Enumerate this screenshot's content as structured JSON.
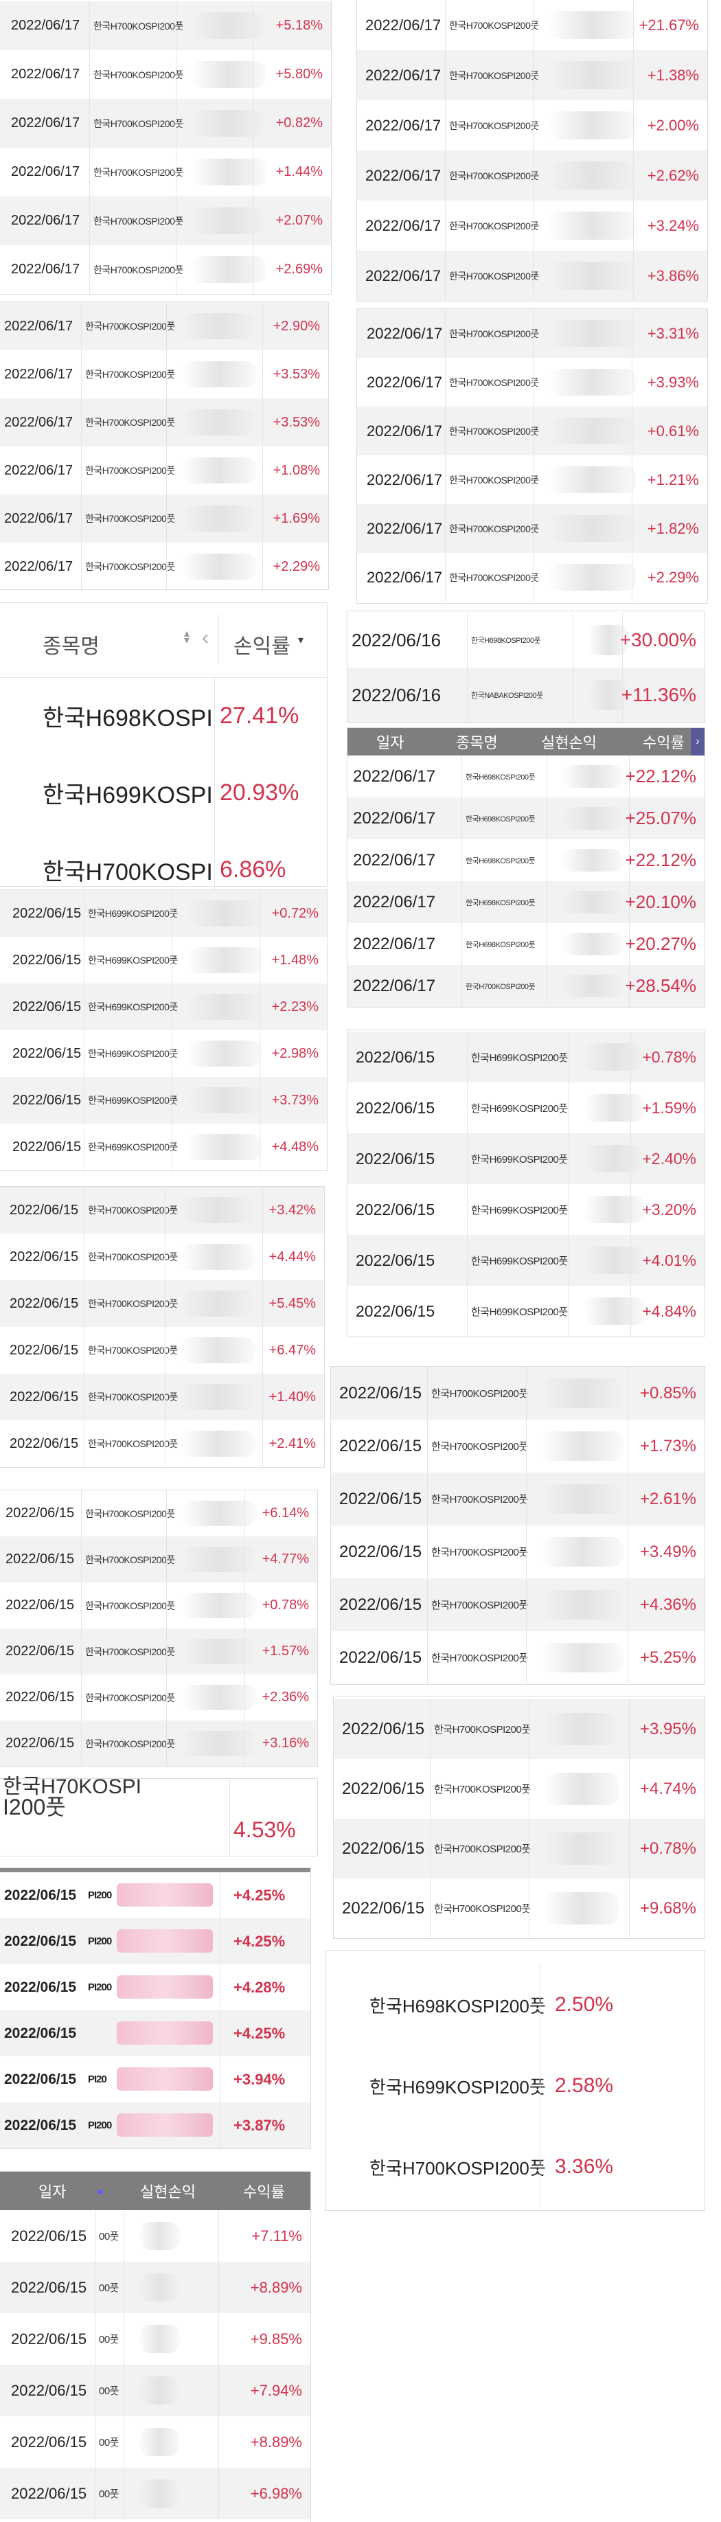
{
  "colors": {
    "positive": "#d2334c",
    "header_bg": "#7e7e7e",
    "row_alt": "#f2f2f2"
  },
  "panelA": {
    "rows": [
      {
        "date": "2022/06/17",
        "name": "한국H700KOSPI200풋",
        "value": "+5.18%"
      },
      {
        "date": "2022/06/17",
        "name": "한국H700KOSPI200풋",
        "value": "+5.80%"
      },
      {
        "date": "2022/06/17",
        "name": "한국H700KOSPI200풋",
        "value": "+0.82%"
      },
      {
        "date": "2022/06/17",
        "name": "한국H700KOSPI200풋",
        "value": "+1.44%"
      },
      {
        "date": "2022/06/17",
        "name": "한국H700KOSPI200풋",
        "value": "+2.07%"
      },
      {
        "date": "2022/06/17",
        "name": "한국H700KOSPI200풋",
        "value": "+2.69%"
      }
    ]
  },
  "panelB": {
    "rows": [
      {
        "date": "2022/06/17",
        "name": "한국H700KOSPI200풋",
        "value": "+21.67%"
      },
      {
        "date": "2022/06/17",
        "name": "한국H700KOSPI200풋",
        "value": "+1.38%"
      },
      {
        "date": "2022/06/17",
        "name": "한국H700KOSPI200풋",
        "value": "+2.00%"
      },
      {
        "date": "2022/06/17",
        "name": "한국H700KOSPI200풋",
        "value": "+2.62%"
      },
      {
        "date": "2022/06/17",
        "name": "한국H700KOSPI200풋",
        "value": "+3.24%"
      },
      {
        "date": "2022/06/17",
        "name": "한국H700KOSPI200풋",
        "value": "+3.86%"
      }
    ]
  },
  "panelC": {
    "rows": [
      {
        "date": "2022/06/17",
        "name": "한국H700KOSPI200풋",
        "value": "+2.90%"
      },
      {
        "date": "2022/06/17",
        "name": "한국H700KOSPI200풋",
        "value": "+3.53%"
      },
      {
        "date": "2022/06/17",
        "name": "한국H700KOSPI200풋",
        "value": "+3.53%"
      },
      {
        "date": "2022/06/17",
        "name": "한국H700KOSPI200풋",
        "value": "+1.08%"
      },
      {
        "date": "2022/06/17",
        "name": "한국H700KOSPI200풋",
        "value": "+1.69%"
      },
      {
        "date": "2022/06/17",
        "name": "한국H700KOSPI200풋",
        "value": "+2.29%"
      }
    ]
  },
  "panelD": {
    "rows": [
      {
        "date": "2022/06/17",
        "name": "한국H700KOSPI200풋",
        "value": "+3.31%"
      },
      {
        "date": "2022/06/17",
        "name": "한국H700KOSPI200풋",
        "value": "+3.93%"
      },
      {
        "date": "2022/06/17",
        "name": "한국H700KOSPI200풋",
        "value": "+0.61%"
      },
      {
        "date": "2022/06/17",
        "name": "한국H700KOSPI200풋",
        "value": "+1.21%"
      },
      {
        "date": "2022/06/17",
        "name": "한국H700KOSPI200풋",
        "value": "+1.82%"
      },
      {
        "date": "2022/06/17",
        "name": "한국H700KOSPI200풋",
        "value": "+2.29%"
      }
    ]
  },
  "panelE": {
    "header": {
      "name": "종목명",
      "sort_icon": "sort-arrows-icon",
      "back_icon": "chevron-left-icon",
      "return": "손익률",
      "dropdown_icon": "caret-down-icon"
    },
    "rows": [
      {
        "name": "한국H698KOSPI",
        "value": "27.41%"
      },
      {
        "name": "한국H699KOSPI",
        "value": "20.93%"
      },
      {
        "name": "한국H700KOSPI",
        "value": "6.86%"
      }
    ]
  },
  "panelF": {
    "rows": [
      {
        "date": "2022/06/16",
        "name": "한국H698KOSPI200풋",
        "value": "+30.00%"
      },
      {
        "date": "2022/06/16",
        "name": "한국NABAKOSPI200풋",
        "value": "+11.36%"
      }
    ]
  },
  "panelG": {
    "header": {
      "date": "일자",
      "name": "종목명",
      "realized": "실현손익",
      "return": "수익률",
      "next_icon": "chevron-right-icon"
    },
    "rows": [
      {
        "date": "2022/06/17",
        "name": "한국H698KOSPI200풋",
        "value": "+22.12%"
      },
      {
        "date": "2022/06/17",
        "name": "한국H698KOSPI200풋",
        "value": "+25.07%"
      },
      {
        "date": "2022/06/17",
        "name": "한국H698KOSPI200풋",
        "value": "+22.12%"
      },
      {
        "date": "2022/06/17",
        "name": "한국H698KOSPI200풋",
        "value": "+20.10%"
      },
      {
        "date": "2022/06/17",
        "name": "한국H698KOSPI200풋",
        "value": "+20.27%"
      },
      {
        "date": "2022/06/17",
        "name": "한국H700KOSPI200풋",
        "value": "+28.54%"
      }
    ]
  },
  "panelH": {
    "rows": [
      {
        "date": "2022/06/15",
        "name": "한국H699KOSPI200풋",
        "value": "+0.72%"
      },
      {
        "date": "2022/06/15",
        "name": "한국H699KOSPI200풋",
        "value": "+1.48%"
      },
      {
        "date": "2022/06/15",
        "name": "한국H699KOSPI200풋",
        "value": "+2.23%"
      },
      {
        "date": "2022/06/15",
        "name": "한국H699KOSPI200풋",
        "value": "+2.98%"
      },
      {
        "date": "2022/06/15",
        "name": "한국H699KOSPI200풋",
        "value": "+3.73%"
      },
      {
        "date": "2022/06/15",
        "name": "한국H699KOSPI200풋",
        "value": "+4.48%"
      }
    ]
  },
  "panelI": {
    "rows": [
      {
        "date": "2022/06/15",
        "name": "한국H699KOSPI200풋",
        "value": "+0.78%"
      },
      {
        "date": "2022/06/15",
        "name": "한국H699KOSPI200풋",
        "value": "+1.59%"
      },
      {
        "date": "2022/06/15",
        "name": "한국H699KOSPI200풋",
        "value": "+2.40%"
      },
      {
        "date": "2022/06/15",
        "name": "한국H699KOSPI200풋",
        "value": "+3.20%"
      },
      {
        "date": "2022/06/15",
        "name": "한국H699KOSPI200풋",
        "value": "+4.01%"
      },
      {
        "date": "2022/06/15",
        "name": "한국H699KOSPI200풋",
        "value": "+4.84%"
      }
    ]
  },
  "panelJ": {
    "rows": [
      {
        "date": "2022/06/15",
        "name": "한국H700KOSPI200풋",
        "value": "+3.42%"
      },
      {
        "date": "2022/06/15",
        "name": "한국H700KOSPI200풋",
        "value": "+4.44%"
      },
      {
        "date": "2022/06/15",
        "name": "한국H700KOSPI200풋",
        "value": "+5.45%"
      },
      {
        "date": "2022/06/15",
        "name": "한국H700KOSPI200풋",
        "value": "+6.47%"
      },
      {
        "date": "2022/06/15",
        "name": "한국H700KOSPI200풋",
        "value": "+1.40%"
      },
      {
        "date": "2022/06/15",
        "name": "한국H700KOSPI200풋",
        "value": "+2.41%"
      }
    ]
  },
  "panelK": {
    "rows": [
      {
        "date": "2022/06/15",
        "name": "한국H700KOSPI200풋",
        "value": "+0.85%"
      },
      {
        "date": "2022/06/15",
        "name": "한국H700KOSPI200풋",
        "value": "+1.73%"
      },
      {
        "date": "2022/06/15",
        "name": "한국H700KOSPI200풋",
        "value": "+2.61%"
      },
      {
        "date": "2022/06/15",
        "name": "한국H700KOSPI200풋",
        "value": "+3.49%"
      },
      {
        "date": "2022/06/15",
        "name": "한국H700KOSPI200풋",
        "value": "+4.36%"
      },
      {
        "date": "2022/06/15",
        "name": "한국H700KOSPI200풋",
        "value": "+5.25%"
      }
    ]
  },
  "panelL": {
    "rows": [
      {
        "date": "2022/06/15",
        "name": "한국H700KOSPI200풋",
        "value": "+6.14%"
      },
      {
        "date": "2022/06/15",
        "name": "한국H700KOSPI200풋",
        "value": "+4.77%"
      },
      {
        "date": "2022/06/15",
        "name": "한국H700KOSPI200풋",
        "value": "+0.78%"
      },
      {
        "date": "2022/06/15",
        "name": "한국H700KOSPI200풋",
        "value": "+1.57%"
      },
      {
        "date": "2022/06/15",
        "name": "한국H700KOSPI200풋",
        "value": "+2.36%"
      },
      {
        "date": "2022/06/15",
        "name": "한국H700KOSPI200풋",
        "value": "+3.16%"
      }
    ]
  },
  "panelM": {
    "rows": [
      {
        "date": "2022/06/15",
        "name": "한국H700KOSPI200풋",
        "value": "+3.95%"
      },
      {
        "date": "2022/06/15",
        "name": "한국H700KOSPI200풋",
        "value": "+4.74%"
      },
      {
        "date": "2022/06/15",
        "name": "한국H700KOSPI200풋",
        "value": "+0.78%"
      },
      {
        "date": "2022/06/15",
        "name": "한국H700KOSPI200풋",
        "value": "+9.68%"
      }
    ]
  },
  "panelN": {
    "top_fragment": "한국H70KOSPI",
    "name": "I200풋",
    "value": "4.53%"
  },
  "panelO": {
    "rows": [
      {
        "date": "2022/06/15",
        "name": "PI200",
        "value": "+4.25%"
      },
      {
        "date": "2022/06/15",
        "name": "PI200",
        "value": "+4.25%"
      },
      {
        "date": "2022/06/15",
        "name": "PI200",
        "value": "+4.28%"
      },
      {
        "date": "2022/06/15",
        "name": "",
        "value": "+4.25%"
      },
      {
        "date": "2022/06/15",
        "name": "PI20",
        "value": "+3.94%"
      },
      {
        "date": "2022/06/15",
        "name": "PI200",
        "value": "+3.87%"
      }
    ]
  },
  "panelP": {
    "rows": [
      {
        "name": "한국H698KOSPI200풋",
        "value": "2.50%"
      },
      {
        "name": "한국H699KOSPI200풋",
        "value": "2.58%"
      },
      {
        "name": "한국H700KOSPI200풋",
        "value": "3.36%"
      }
    ]
  },
  "panelQ": {
    "header": {
      "date": "일자",
      "back_icon": "caret-left-icon",
      "realized": "실현손익",
      "return": "수익률"
    },
    "rows": [
      {
        "date": "2022/06/15",
        "name": "00풋",
        "value": "+7.11%"
      },
      {
        "date": "2022/06/15",
        "name": "00풋",
        "value": "+8.89%"
      },
      {
        "date": "2022/06/15",
        "name": "00풋",
        "value": "+9.85%"
      },
      {
        "date": "2022/06/15",
        "name": "00풋",
        "value": "+7.94%"
      },
      {
        "date": "2022/06/15",
        "name": "00풋",
        "value": "+8.89%"
      },
      {
        "date": "2022/06/15",
        "name": "00풋",
        "value": "+6.98%"
      }
    ]
  }
}
